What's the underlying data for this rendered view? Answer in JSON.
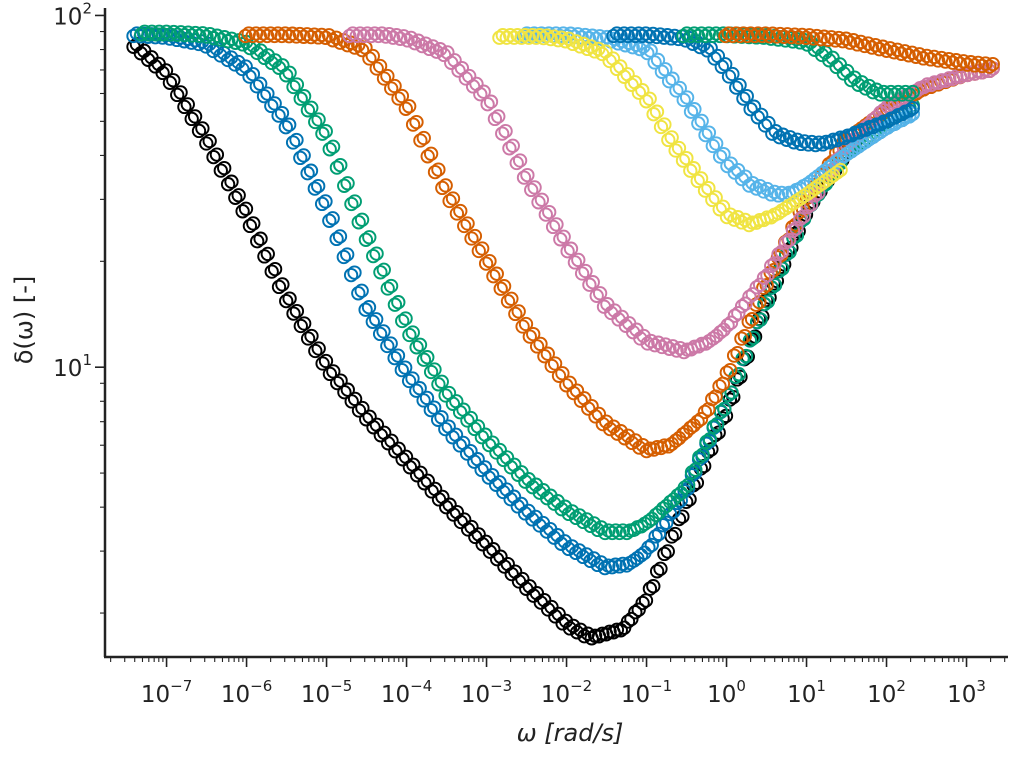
{
  "chart_data": {
    "type": "scatter",
    "title": "",
    "xlabel": "ω [rad/s]",
    "ylabel": "δ(ω) [-]",
    "xscale": "log",
    "yscale": "log",
    "xlim": [
      1.7e-08,
      3300
    ],
    "ylim": [
      1.5,
      105
    ],
    "grid": false,
    "legend": "none",
    "marker": "open circle",
    "x_ticks": [
      {
        "base": "10",
        "exp": "−7",
        "value": 1e-07
      },
      {
        "base": "10",
        "exp": "−6",
        "value": 1e-06
      },
      {
        "base": "10",
        "exp": "−5",
        "value": 1e-05
      },
      {
        "base": "10",
        "exp": "−4",
        "value": 0.0001
      },
      {
        "base": "10",
        "exp": "−3",
        "value": 0.001
      },
      {
        "base": "10",
        "exp": "−2",
        "value": 0.01
      },
      {
        "base": "10",
        "exp": "−1",
        "value": 0.1
      },
      {
        "base": "10",
        "exp": "0",
        "value": 1
      },
      {
        "base": "10",
        "exp": "1",
        "value": 10
      },
      {
        "base": "10",
        "exp": "2",
        "value": 100
      },
      {
        "base": "10",
        "exp": "3",
        "value": 1000
      }
    ],
    "y_ticks": [
      {
        "base": "10",
        "exp": "1",
        "value": 10
      },
      {
        "base": "10",
        "exp": "2",
        "value": 100
      }
    ],
    "series": [
      {
        "color": "#000000",
        "start": 4e-08,
        "end": 40,
        "points": [
          [
            4e-08,
            82
          ],
          [
            1e-07,
            68
          ],
          [
            3e-07,
            45
          ],
          [
            1e-06,
            27
          ],
          [
            3e-06,
            16
          ],
          [
            1e-05,
            10
          ],
          [
            3e-05,
            7.3
          ],
          [
            0.0001,
            5.4
          ],
          [
            0.0003,
            4.1
          ],
          [
            0.001,
            3.1
          ],
          [
            0.003,
            2.4
          ],
          [
            0.01,
            1.85
          ],
          [
            0.02,
            1.7
          ],
          [
            0.05,
            1.8
          ],
          [
            0.1,
            2.2
          ],
          [
            0.3,
            4.0
          ],
          [
            1,
            7.5
          ],
          [
            3,
            15
          ],
          [
            10,
            28
          ],
          [
            40,
            44
          ]
        ]
      },
      {
        "color": "#0072b2",
        "start": 4e-08,
        "end": 200,
        "points": [
          [
            4e-08,
            88
          ],
          [
            1e-07,
            87
          ],
          [
            3e-07,
            83
          ],
          [
            1e-06,
            70
          ],
          [
            3e-06,
            50
          ],
          [
            1e-05,
            28
          ],
          [
            3e-05,
            15
          ],
          [
            0.0001,
            9.5
          ],
          [
            0.0003,
            6.8
          ],
          [
            0.001,
            5
          ],
          [
            0.003,
            3.9
          ],
          [
            0.01,
            3.1
          ],
          [
            0.03,
            2.7
          ],
          [
            0.06,
            2.75
          ],
          [
            0.1,
            3.0
          ],
          [
            0.3,
            4.4
          ],
          [
            1,
            8.0
          ],
          [
            3,
            15
          ],
          [
            10,
            28
          ],
          [
            30,
            40
          ],
          [
            100,
            48
          ],
          [
            200,
            52
          ]
        ]
      },
      {
        "color": "#009e73",
        "start": 5e-08,
        "end": 200,
        "points": [
          [
            5e-08,
            89
          ],
          [
            1e-07,
            89
          ],
          [
            3e-07,
            88
          ],
          [
            1e-06,
            83
          ],
          [
            3e-06,
            70
          ],
          [
            1e-05,
            45
          ],
          [
            3e-05,
            24
          ],
          [
            0.0001,
            13
          ],
          [
            0.0003,
            8.5
          ],
          [
            0.001,
            6.2
          ],
          [
            0.003,
            4.8
          ],
          [
            0.01,
            3.9
          ],
          [
            0.03,
            3.4
          ],
          [
            0.06,
            3.4
          ],
          [
            0.1,
            3.6
          ],
          [
            0.3,
            4.5
          ],
          [
            1,
            8.0
          ],
          [
            3,
            15
          ],
          [
            10,
            28
          ],
          [
            30,
            40
          ],
          [
            100,
            50
          ],
          [
            200,
            55
          ]
        ]
      },
      {
        "color": "#d55e00",
        "start": 1e-06,
        "end": 2000,
        "points": [
          [
            1e-06,
            88
          ],
          [
            3e-06,
            88
          ],
          [
            1e-05,
            87
          ],
          [
            3e-05,
            80
          ],
          [
            0.0001,
            55
          ],
          [
            0.0003,
            32
          ],
          [
            0.001,
            20
          ],
          [
            0.003,
            13
          ],
          [
            0.01,
            9
          ],
          [
            0.03,
            6.9
          ],
          [
            0.1,
            5.8
          ],
          [
            0.2,
            6.0
          ],
          [
            0.5,
            7.2
          ],
          [
            1,
            9.5
          ],
          [
            3,
            17
          ],
          [
            10,
            30
          ],
          [
            30,
            44
          ],
          [
            100,
            54
          ],
          [
            300,
            62
          ],
          [
            1000,
            68
          ],
          [
            2000,
            70
          ]
        ]
      },
      {
        "color": "#cc79a7",
        "start": 2e-05,
        "end": 2000,
        "points": [
          [
            2e-05,
            88
          ],
          [
            5e-05,
            88
          ],
          [
            0.0001,
            86
          ],
          [
            0.0003,
            78
          ],
          [
            0.001,
            58
          ],
          [
            0.003,
            35
          ],
          [
            0.01,
            22
          ],
          [
            0.03,
            15
          ],
          [
            0.1,
            11.8
          ],
          [
            0.3,
            11.1
          ],
          [
            0.6,
            11.8
          ],
          [
            1,
            13
          ],
          [
            3,
            18
          ],
          [
            10,
            28
          ],
          [
            30,
            42
          ],
          [
            100,
            55
          ],
          [
            300,
            63
          ],
          [
            1000,
            68
          ],
          [
            2000,
            70
          ]
        ]
      },
      {
        "color": "#56b4e9",
        "start": 0.003,
        "end": 200,
        "points": [
          [
            0.003,
            88
          ],
          [
            0.01,
            88
          ],
          [
            0.03,
            86
          ],
          [
            0.1,
            80
          ],
          [
            0.3,
            58
          ],
          [
            0.6,
            45
          ],
          [
            1,
            38
          ],
          [
            2,
            33
          ],
          [
            4,
            31
          ],
          [
            6,
            31
          ],
          [
            10,
            33
          ],
          [
            30,
            40
          ],
          [
            100,
            48
          ],
          [
            200,
            52
          ]
        ]
      },
      {
        "color": "#f0e442",
        "start": 0.0015,
        "end": 25,
        "points": [
          [
            0.0015,
            87
          ],
          [
            0.005,
            87
          ],
          [
            0.01,
            85
          ],
          [
            0.03,
            78
          ],
          [
            0.1,
            58
          ],
          [
            0.2,
            44
          ],
          [
            0.5,
            33
          ],
          [
            1,
            27
          ],
          [
            2,
            25.5
          ],
          [
            4,
            27
          ],
          [
            10,
            31
          ],
          [
            25,
            36
          ]
        ]
      },
      {
        "color": "#0072b2",
        "start": 0.04,
        "end": 200,
        "points": [
          [
            0.04,
            88
          ],
          [
            0.1,
            88
          ],
          [
            0.3,
            86
          ],
          [
            0.6,
            80
          ],
          [
            1,
            70
          ],
          [
            2,
            55
          ],
          [
            4,
            46
          ],
          [
            8,
            43.5
          ],
          [
            15,
            43
          ],
          [
            30,
            45
          ],
          [
            100,
            50
          ],
          [
            200,
            54
          ]
        ]
      },
      {
        "color": "#009e73",
        "start": 0.3,
        "end": 200,
        "points": [
          [
            0.3,
            88
          ],
          [
            1,
            88
          ],
          [
            3,
            87
          ],
          [
            10,
            84
          ],
          [
            20,
            75
          ],
          [
            40,
            65
          ],
          [
            80,
            60
          ],
          [
            200,
            60
          ]
        ]
      },
      {
        "color": "#d55e00",
        "start": 1,
        "end": 2000,
        "points": [
          [
            1,
            88
          ],
          [
            3,
            88
          ],
          [
            10,
            87
          ],
          [
            30,
            85
          ],
          [
            100,
            80
          ],
          [
            300,
            76
          ],
          [
            1000,
            73
          ],
          [
            2000,
            72
          ]
        ]
      }
    ]
  }
}
